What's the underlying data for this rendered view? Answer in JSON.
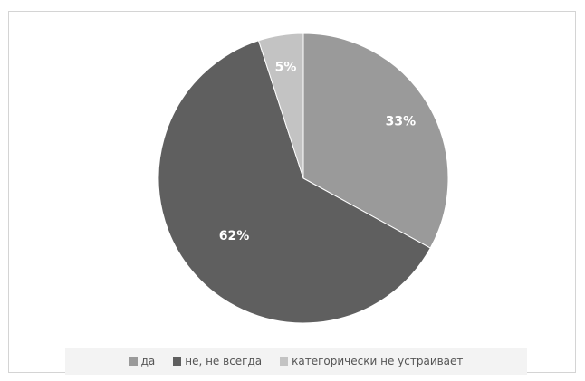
{
  "chart_data": {
    "type": "pie",
    "title": "",
    "categories": [
      "да",
      "не, не всегда",
      "категорически не устраивает"
    ],
    "values": [
      33,
      62,
      5
    ],
    "data_labels": [
      "33%",
      "62%",
      "5%"
    ],
    "colors": [
      "#9a9a9a",
      "#5f5f5f",
      "#c3c3c3"
    ],
    "label_color": "#ffffff",
    "start_angle_deg": 0,
    "direction": "clockwise",
    "legend": {
      "position": "bottom",
      "entries": [
        "да",
        "не, не всегда",
        "категорически не устраивает"
      ]
    }
  }
}
